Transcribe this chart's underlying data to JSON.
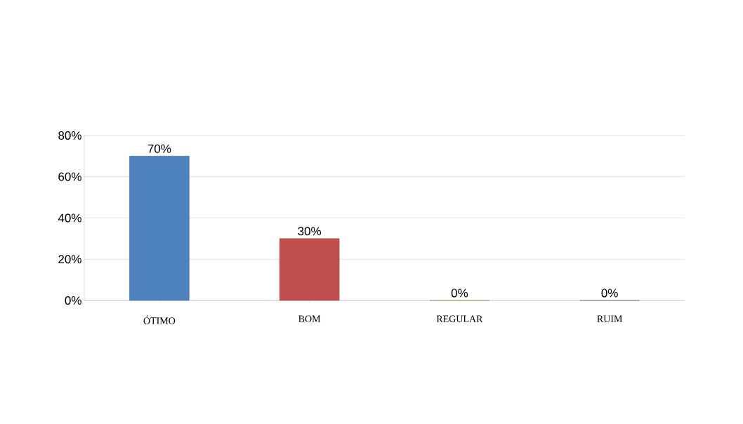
{
  "chart_data": {
    "type": "bar",
    "categories": [
      "ÓTIMO",
      "BOM",
      "REGULAR",
      "RUIM"
    ],
    "values": [
      70,
      30,
      0,
      0
    ],
    "colors": [
      "#4f81bd",
      "#c0504d",
      "#9bbb59",
      "#8064a2"
    ],
    "value_labels": [
      "70%",
      "30%",
      "0%",
      "0%"
    ],
    "ylim": [
      0,
      80
    ],
    "yticks": [
      {
        "value": 0,
        "label": "0%"
      },
      {
        "value": 20,
        "label": "20%"
      },
      {
        "value": 40,
        "label": "40%"
      },
      {
        "value": 60,
        "label": "60%"
      },
      {
        "value": 80,
        "label": "80%"
      }
    ],
    "grid": "y"
  }
}
